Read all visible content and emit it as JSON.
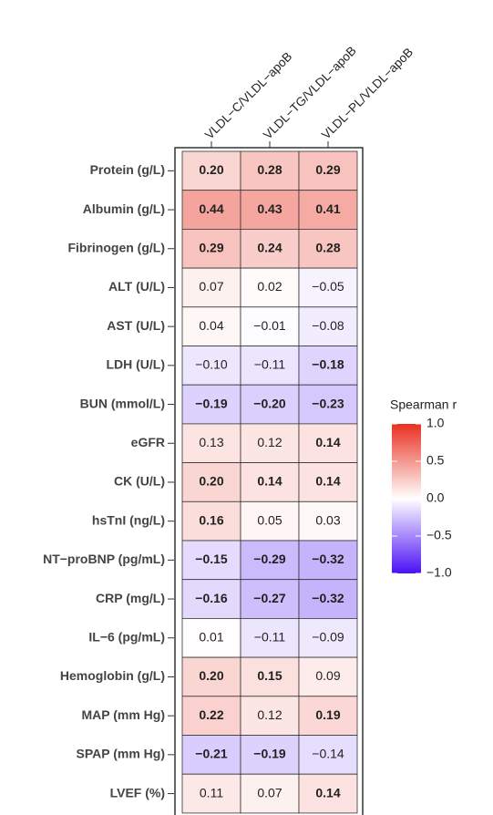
{
  "chart_data": {
    "type": "heatmap",
    "columns": [
      "VLDL−C/VLDL−apoB",
      "VLDL−TG/VLDL−apoB",
      "VLDL−PL/VLDL−apoB"
    ],
    "rows": [
      "Protein (g/L)",
      "Albumin (g/L)",
      "Fibrinogen (g/L)",
      "ALT (U/L)",
      "AST (U/L)",
      "LDH (U/L)",
      "BUN (mmol/L)",
      "eGFR",
      "CK (U/L)",
      "hsTnI (ng/L)",
      "NT−proBNP (pg/mL)",
      "CRP (mg/L)",
      "IL−6 (pg/mL)",
      "Hemoglobin (g/L)",
      "MAP (mm Hg)",
      "SPAP (mm Hg)",
      "LVEF (%)"
    ],
    "values": [
      [
        0.2,
        0.28,
        0.29
      ],
      [
        0.44,
        0.43,
        0.41
      ],
      [
        0.29,
        0.24,
        0.28
      ],
      [
        0.07,
        0.02,
        -0.05
      ],
      [
        0.04,
        -0.01,
        -0.08
      ],
      [
        -0.1,
        -0.11,
        -0.18
      ],
      [
        -0.19,
        -0.2,
        -0.23
      ],
      [
        0.13,
        0.12,
        0.14
      ],
      [
        0.2,
        0.14,
        0.14
      ],
      [
        0.16,
        0.05,
        0.03
      ],
      [
        -0.15,
        -0.29,
        -0.32
      ],
      [
        -0.16,
        -0.27,
        -0.32
      ],
      [
        0.01,
        -0.11,
        -0.09
      ],
      [
        0.2,
        0.15,
        0.09
      ],
      [
        0.22,
        0.12,
        0.19
      ],
      [
        -0.21,
        -0.19,
        -0.14
      ],
      [
        0.11,
        0.07,
        0.14
      ]
    ],
    "value_labels": [
      [
        "0.20",
        "0.28",
        "0.29"
      ],
      [
        "0.44",
        "0.43",
        "0.41"
      ],
      [
        "0.29",
        "0.24",
        "0.28"
      ],
      [
        "0.07",
        "0.02",
        "−0.05"
      ],
      [
        "0.04",
        "−0.01",
        "−0.08"
      ],
      [
        "−0.10",
        "−0.11",
        "−0.18"
      ],
      [
        "−0.19",
        "−0.20",
        "−0.23"
      ],
      [
        "0.13",
        "0.12",
        "0.14"
      ],
      [
        "0.20",
        "0.14",
        "0.14"
      ],
      [
        "0.16",
        "0.05",
        "0.03"
      ],
      [
        "−0.15",
        "−0.29",
        "−0.32"
      ],
      [
        "−0.16",
        "−0.27",
        "−0.32"
      ],
      [
        "0.01",
        "−0.11",
        "−0.09"
      ],
      [
        "0.20",
        "0.15",
        "0.09"
      ],
      [
        "0.22",
        "0.12",
        "0.19"
      ],
      [
        "−0.21",
        "−0.19",
        "−0.14"
      ],
      [
        "0.11",
        "0.07",
        "0.14"
      ]
    ],
    "bold": [
      [
        true,
        true,
        true
      ],
      [
        true,
        true,
        true
      ],
      [
        true,
        true,
        true
      ],
      [
        false,
        false,
        false
      ],
      [
        false,
        false,
        false
      ],
      [
        false,
        false,
        true
      ],
      [
        true,
        true,
        true
      ],
      [
        false,
        false,
        true
      ],
      [
        true,
        true,
        true
      ],
      [
        true,
        false,
        false
      ],
      [
        true,
        true,
        true
      ],
      [
        true,
        true,
        true
      ],
      [
        false,
        false,
        false
      ],
      [
        true,
        true,
        false
      ],
      [
        true,
        false,
        true
      ],
      [
        true,
        true,
        false
      ],
      [
        false,
        false,
        true
      ]
    ],
    "legend_title": "Spearman r",
    "clim": [
      -1,
      1
    ],
    "cticks": [
      {
        "value": 1,
        "label": "1.0"
      },
      {
        "value": 0.5,
        "label": "0.5"
      },
      {
        "value": 0,
        "label": "0.0"
      },
      {
        "value": -0.5,
        "label": "−0.5"
      },
      {
        "value": -1,
        "label": "−1.0"
      }
    ],
    "colors": {
      "low": "#4a10f5",
      "mid": "#ffffff",
      "high": "#e83020"
    }
  }
}
